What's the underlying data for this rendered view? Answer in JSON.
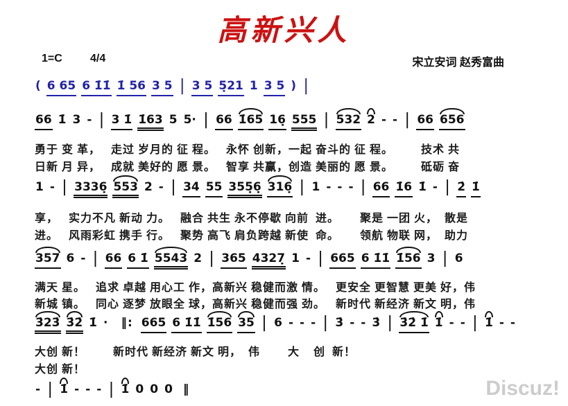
{
  "title": {
    "text": "高新兴人",
    "color": "#cc1111"
  },
  "header": {
    "key": "1=C",
    "time": "4/4",
    "credits": "宋立安词 赵秀富曲"
  },
  "score": {
    "intro_color": "#2222aa",
    "lines": {
      "intro": [
        {
          "t": "("
        },
        {
          "t": "6 65",
          "u": 1
        },
        {
          "t": "6 1̇1̇",
          "u": 1
        },
        {
          "t": "1̇ 56",
          "u": 1
        },
        {
          "t": "3 5",
          "u": 1
        },
        {
          "t": "|",
          "cls": "bar"
        },
        {
          "t": "3 5",
          "u": 1
        },
        {
          "t": "5̣21",
          "u": 1
        },
        {
          "t": "1"
        },
        {
          "t": "3 5",
          "u": 1
        },
        {
          "t": ")"
        },
        {
          "t": "|",
          "cls": "bar"
        }
      ],
      "a": [
        {
          "t": "66",
          "u": 1
        },
        {
          "t": "1̇"
        },
        {
          "t": "3"
        },
        {
          "t": "-"
        },
        {
          "t": "|",
          "cls": "bar"
        },
        {
          "t": "3 1̇",
          "u": 1
        },
        {
          "t": "1̇63",
          "u": 2
        },
        {
          "t": "5"
        },
        {
          "t": "5·"
        },
        {
          "t": "|",
          "cls": "bar"
        },
        {
          "t": "66",
          "u": 1
        },
        {
          "t": "1̇65",
          "u": 1,
          "arc": true
        },
        {
          "t": "16̣",
          "u": 1
        },
        {
          "t": "555",
          "u": 2
        },
        {
          "t": "|",
          "cls": "bar"
        },
        {
          "t": "532",
          "u": 1,
          "arc": true
        },
        {
          "t": "2",
          "arc": true
        },
        {
          "t": "-"
        },
        {
          "t": "-"
        },
        {
          "t": "|",
          "cls": "bar"
        },
        {
          "t": "66",
          "u": 1
        },
        {
          "t": "656",
          "u": 1,
          "arc": true
        }
      ],
      "b": [
        {
          "t": "1"
        },
        {
          "t": "-"
        },
        {
          "t": "|",
          "cls": "bar"
        },
        {
          "t": "3336̣",
          "u": 2
        },
        {
          "t": "553",
          "u": 2,
          "arc": true
        },
        {
          "t": "2"
        },
        {
          "t": "-"
        },
        {
          "t": "|",
          "cls": "bar"
        },
        {
          "t": "34",
          "u": 1
        },
        {
          "t": "55",
          "u": 1
        },
        {
          "t": "355̣6̣",
          "u": 2
        },
        {
          "t": "316̣",
          "u": 1,
          "arc": true
        },
        {
          "t": "|",
          "cls": "bar"
        },
        {
          "t": "1"
        },
        {
          "t": "-"
        },
        {
          "t": "-"
        },
        {
          "t": "-"
        },
        {
          "t": "|",
          "cls": "bar"
        },
        {
          "t": "66",
          "u": 1
        },
        {
          "t": "1̇6",
          "u": 1
        },
        {
          "t": "1̇"
        },
        {
          "t": "-"
        },
        {
          "t": "|",
          "cls": "bar"
        },
        {
          "t": "2̇",
          "u": 1
        },
        {
          "t": "1̇",
          "u": 1
        }
      ],
      "c": [
        {
          "t": "357",
          "u": 1,
          "arc": true
        },
        {
          "t": "6"
        },
        {
          "t": "-"
        },
        {
          "t": "|",
          "cls": "bar"
        },
        {
          "t": "66",
          "u": 1
        },
        {
          "t": "6 1̇",
          "u": 1
        },
        {
          "t": "5543",
          "u": 2,
          "arc": true
        },
        {
          "t": "2"
        },
        {
          "t": "|",
          "cls": "bar"
        },
        {
          "t": "365",
          "u": 1
        },
        {
          "t": "4327̣",
          "u": 2
        },
        {
          "t": "1"
        },
        {
          "t": "-"
        },
        {
          "t": "|",
          "cls": "bar"
        },
        {
          "t": "665",
          "u": 1
        },
        {
          "t": "6 1̇1̇",
          "u": 1
        },
        {
          "t": "1̇56",
          "u": 1,
          "arc": true
        },
        {
          "t": "3"
        },
        {
          "t": "|",
          "cls": "bar"
        },
        {
          "t": "6"
        }
      ],
      "d": [
        {
          "t": "3̇23̇",
          "u": 2,
          "arc": true
        },
        {
          "t": "3̇2̇",
          "u": 2,
          "arc": true
        },
        {
          "t": "1̇"
        },
        {
          "t": "·"
        },
        {
          "t": "‖:",
          "cls": "repeat"
        },
        {
          "t": "665",
          "u": 1
        },
        {
          "t": "6 1̇1̇",
          "u": 1
        },
        {
          "t": "1̇56",
          "u": 1,
          "arc": true
        },
        {
          "t": "35",
          "u": 1,
          "arc": true
        },
        {
          "t": "|",
          "cls": "bar"
        },
        {
          "t": "6"
        },
        {
          "t": "-"
        },
        {
          "t": "-"
        },
        {
          "t": "-"
        },
        {
          "t": "|",
          "cls": "bar"
        },
        {
          "t": "3̇"
        },
        {
          "t": "-"
        },
        {
          "t": "-"
        },
        {
          "t": "3̇"
        },
        {
          "t": "|",
          "cls": "bar"
        },
        {
          "t": "3̇2̇ 1̇",
          "u": 1,
          "arc": true
        },
        {
          "t": "1̇",
          "arc": true
        },
        {
          "t": "-"
        },
        {
          "t": "-"
        },
        {
          "t": "|",
          "cls": "bar"
        },
        {
          "t": "1̇",
          "arc": true
        },
        {
          "t": "-"
        },
        {
          "t": "-"
        }
      ],
      "e": [
        {
          "t": "-"
        },
        {
          "t": "|",
          "cls": "bar"
        },
        {
          "t": "1̇",
          "arc": true
        },
        {
          "t": "-"
        },
        {
          "t": "-"
        },
        {
          "t": "-"
        },
        {
          "t": "|",
          "cls": "bar"
        },
        {
          "t": "1̇",
          "arc": true
        },
        {
          "t": "0"
        },
        {
          "t": "0"
        },
        {
          "t": "0"
        },
        {
          "t": "‖",
          "cls": "final"
        }
      ]
    },
    "lyrics": {
      "l1a": "勇于 变 革，   走过 岁月的 征 程。   永怀 创新，一起 奋斗的 征 程。        技术 共",
      "l1b": "日新 月 异，   成就 美好的 愿 景。   智享 共赢，创造 美丽的 愿 景。        砥砺 奋",
      "l2a": "享，   实力不凡 新动 力。   融合 共生 永不停歇 向前  进。      聚是 一团 火，  散是",
      "l2b": "进。   风雨彩虹 携手 行。   聚势 高飞 肩负跨越 新使  命。      领航 物联 网，  助力",
      "l3a": "满天 星。   追求 卓越 用心工 作，高新兴 稳健而激 情。   更安全 更智慧 更美 好，伟",
      "l3b": "新城 镇。   同心 逐梦 放眼全 球，高新兴 稳健而强 劲。   新时代 新经济 新文 明，伟",
      "l4a": "大创 新！        新时代 新经济 新文 明，  伟        大    创  新！",
      "l4b": "大创 新！"
    }
  },
  "watermark": {
    "text": "Discuz!",
    "color": "#cccccc"
  }
}
